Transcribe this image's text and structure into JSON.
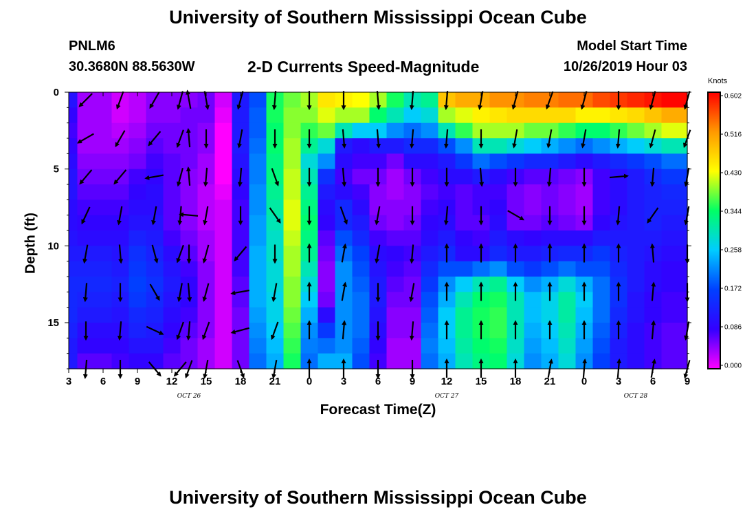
{
  "header": {
    "title": "University of Southern Mississippi Ocean Cube",
    "station": "PNLM6",
    "coords": "30.3680N 88.5630W",
    "subtitle": "2-D Currents Speed-Magnitude",
    "model_start_label": "Model Start Time",
    "model_start_value": "10/26/2019 Hour 03"
  },
  "footer": {
    "title": "University of Southern Mississippi Ocean Cube"
  },
  "chart_data": {
    "type": "heatmap",
    "title": "2-D Currents Speed-Magnitude",
    "xlabel": "Forecast Time(Z)",
    "ylabel": "Depth (ft)",
    "x_range_hours": [
      0,
      54
    ],
    "x_tick_labels": [
      "3",
      "6",
      "9",
      "12",
      "15",
      "18",
      "21",
      "0",
      "3",
      "6",
      "9",
      "12",
      "15",
      "18",
      "21",
      "0",
      "3",
      "6",
      "9"
    ],
    "date_labels": [
      {
        "text": "OCT 26",
        "hour": 10.5
      },
      {
        "text": "OCT 27",
        "hour": 33
      },
      {
        "text": "OCT 28",
        "hour": 49.5
      }
    ],
    "y_range_ft": [
      0,
      18
    ],
    "y_ticks": [
      0,
      5,
      10,
      15
    ],
    "colorbar": {
      "units": "Knots",
      "min": 0.0,
      "max": 0.602,
      "tick_labels": [
        "0.602",
        "0.516",
        "0.430",
        "0.344",
        "0.258",
        "0.172",
        "0.086",
        "0.000"
      ],
      "colors": [
        "#ff00ff",
        "#3300ff",
        "#0040ff",
        "#00ccff",
        "#00ff66",
        "#ffff00",
        "#ff9900",
        "#ff0000"
      ]
    },
    "time_hours": [
      0,
      1.5,
      3,
      4.5,
      6,
      7.5,
      9,
      10.5,
      12,
      13.5,
      15,
      16.5,
      18,
      19.5,
      21,
      22.5,
      24,
      25.5,
      27,
      28.5,
      30,
      31.5,
      33,
      34.5,
      36,
      37.5,
      39,
      40.5,
      42,
      43.5,
      45,
      46.5,
      48,
      49.5,
      51,
      52.5,
      54
    ],
    "depth_ft": [
      0,
      1,
      2,
      3,
      4,
      5,
      6,
      7,
      8,
      9,
      10,
      11,
      12,
      13,
      14,
      15,
      16,
      17
    ],
    "speed_knots_by_time_row": [
      [
        0.11,
        0.09,
        0.08,
        0.09,
        0.1,
        0.11,
        0.11,
        0.1,
        0.1,
        0.11,
        0.12,
        0.13,
        0.14,
        0.14,
        0.14,
        0.13,
        0.12,
        0.12
      ],
      [
        0.04,
        0.04,
        0.04,
        0.04,
        0.05,
        0.06,
        0.07,
        0.08,
        0.09,
        0.1,
        0.12,
        0.13,
        0.14,
        0.13,
        0.12,
        0.1,
        0.09,
        0.07
      ],
      [
        0.04,
        0.04,
        0.04,
        0.04,
        0.05,
        0.06,
        0.07,
        0.08,
        0.09,
        0.1,
        0.12,
        0.13,
        0.14,
        0.13,
        0.12,
        0.1,
        0.09,
        0.07
      ],
      [
        0.02,
        0.02,
        0.03,
        0.04,
        0.05,
        0.06,
        0.07,
        0.08,
        0.09,
        0.1,
        0.11,
        0.12,
        0.13,
        0.12,
        0.11,
        0.1,
        0.09,
        0.08
      ],
      [
        0.03,
        0.03,
        0.04,
        0.05,
        0.06,
        0.08,
        0.09,
        0.1,
        0.11,
        0.13,
        0.15,
        0.16,
        0.17,
        0.16,
        0.14,
        0.13,
        0.11,
        0.09
      ],
      [
        0.05,
        0.05,
        0.06,
        0.07,
        0.08,
        0.09,
        0.1,
        0.1,
        0.11,
        0.12,
        0.13,
        0.14,
        0.15,
        0.14,
        0.13,
        0.12,
        0.11,
        0.09
      ],
      [
        0.05,
        0.05,
        0.06,
        0.06,
        0.07,
        0.07,
        0.07,
        0.07,
        0.07,
        0.08,
        0.1,
        0.11,
        0.12,
        0.11,
        0.1,
        0.09,
        0.08,
        0.07
      ],
      [
        0.05,
        0.06,
        0.06,
        0.06,
        0.06,
        0.05,
        0.05,
        0.05,
        0.05,
        0.06,
        0.07,
        0.08,
        0.09,
        0.09,
        0.08,
        0.07,
        0.06,
        0.06
      ],
      [
        0.06,
        0.06,
        0.05,
        0.05,
        0.04,
        0.04,
        0.03,
        0.03,
        0.03,
        0.04,
        0.04,
        0.05,
        0.05,
        0.05,
        0.05,
        0.05,
        0.04,
        0.04
      ],
      [
        0.02,
        0.01,
        0.0,
        0.0,
        0.0,
        0.0,
        0.01,
        0.02,
        0.02,
        0.02,
        0.02,
        0.02,
        0.02,
        0.02,
        0.02,
        0.02,
        0.02,
        0.02
      ],
      [
        0.12,
        0.12,
        0.12,
        0.12,
        0.11,
        0.1,
        0.09,
        0.08,
        0.08,
        0.08,
        0.08,
        0.08,
        0.07,
        0.07,
        0.06,
        0.06,
        0.06,
        0.06
      ],
      [
        0.18,
        0.19,
        0.19,
        0.2,
        0.21,
        0.21,
        0.22,
        0.22,
        0.23,
        0.23,
        0.24,
        0.24,
        0.24,
        0.24,
        0.23,
        0.22,
        0.21,
        0.2
      ],
      [
        0.35,
        0.35,
        0.34,
        0.34,
        0.33,
        0.33,
        0.32,
        0.31,
        0.3,
        0.29,
        0.29,
        0.28,
        0.28,
        0.27,
        0.27,
        0.26,
        0.25,
        0.24
      ],
      [
        0.38,
        0.39,
        0.39,
        0.4,
        0.4,
        0.41,
        0.41,
        0.42,
        0.42,
        0.41,
        0.4,
        0.4,
        0.39,
        0.39,
        0.38,
        0.37,
        0.36,
        0.35
      ],
      [
        0.4,
        0.39,
        0.36,
        0.32,
        0.28,
        0.3,
        0.32,
        0.33,
        0.34,
        0.33,
        0.32,
        0.3,
        0.28,
        0.26,
        0.24,
        0.22,
        0.21,
        0.2
      ],
      [
        0.45,
        0.42,
        0.38,
        0.28,
        0.22,
        0.15,
        0.12,
        0.1,
        0.09,
        0.07,
        0.06,
        0.05,
        0.05,
        0.06,
        0.1,
        0.16,
        0.2,
        0.24
      ],
      [
        0.44,
        0.4,
        0.3,
        0.12,
        0.1,
        0.08,
        0.1,
        0.14,
        0.14,
        0.18,
        0.2,
        0.22,
        0.22,
        0.22,
        0.22,
        0.22,
        0.22,
        0.24
      ],
      [
        0.43,
        0.4,
        0.26,
        0.1,
        0.08,
        0.06,
        0.08,
        0.1,
        0.12,
        0.14,
        0.17,
        0.18,
        0.19,
        0.2,
        0.2,
        0.2,
        0.19,
        0.18
      ],
      [
        0.4,
        0.34,
        0.26,
        0.12,
        0.08,
        0.06,
        0.05,
        0.05,
        0.06,
        0.08,
        0.1,
        0.11,
        0.12,
        0.12,
        0.11,
        0.1,
        0.09,
        0.08
      ],
      [
        0.35,
        0.3,
        0.22,
        0.12,
        0.06,
        0.04,
        0.04,
        0.05,
        0.05,
        0.07,
        0.09,
        0.08,
        0.07,
        0.06,
        0.05,
        0.05,
        0.04,
        0.04
      ],
      [
        0.3,
        0.26,
        0.2,
        0.14,
        0.1,
        0.06,
        0.05,
        0.05,
        0.06,
        0.07,
        0.08,
        0.07,
        0.06,
        0.06,
        0.05,
        0.05,
        0.04,
        0.04
      ],
      [
        0.32,
        0.28,
        0.22,
        0.14,
        0.1,
        0.08,
        0.07,
        0.08,
        0.09,
        0.1,
        0.12,
        0.14,
        0.16,
        0.18,
        0.19,
        0.2,
        0.21,
        0.2
      ],
      [
        0.48,
        0.4,
        0.3,
        0.18,
        0.12,
        0.1,
        0.08,
        0.09,
        0.1,
        0.12,
        0.14,
        0.18,
        0.22,
        0.24,
        0.26,
        0.26,
        0.25,
        0.24
      ],
      [
        0.5,
        0.42,
        0.36,
        0.22,
        0.16,
        0.1,
        0.07,
        0.07,
        0.07,
        0.09,
        0.1,
        0.18,
        0.26,
        0.3,
        0.32,
        0.32,
        0.31,
        0.3
      ],
      [
        0.5,
        0.44,
        0.4,
        0.3,
        0.2,
        0.12,
        0.08,
        0.08,
        0.07,
        0.08,
        0.1,
        0.2,
        0.3,
        0.34,
        0.35,
        0.35,
        0.34,
        0.33
      ],
      [
        0.52,
        0.45,
        0.4,
        0.3,
        0.18,
        0.1,
        0.08,
        0.09,
        0.1,
        0.12,
        0.14,
        0.22,
        0.32,
        0.35,
        0.36,
        0.36,
        0.35,
        0.34
      ],
      [
        0.52,
        0.46,
        0.4,
        0.28,
        0.16,
        0.08,
        0.06,
        0.06,
        0.06,
        0.1,
        0.12,
        0.18,
        0.26,
        0.3,
        0.3,
        0.3,
        0.29,
        0.28
      ],
      [
        0.53,
        0.46,
        0.38,
        0.26,
        0.14,
        0.07,
        0.05,
        0.05,
        0.06,
        0.09,
        0.12,
        0.16,
        0.22,
        0.25,
        0.25,
        0.24,
        0.23,
        0.22
      ],
      [
        0.53,
        0.46,
        0.38,
        0.24,
        0.14,
        0.07,
        0.06,
        0.06,
        0.07,
        0.1,
        0.13,
        0.18,
        0.24,
        0.27,
        0.27,
        0.26,
        0.25,
        0.24
      ],
      [
        0.54,
        0.46,
        0.36,
        0.22,
        0.12,
        0.06,
        0.05,
        0.05,
        0.06,
        0.1,
        0.14,
        0.2,
        0.28,
        0.31,
        0.31,
        0.3,
        0.29,
        0.28
      ],
      [
        0.54,
        0.44,
        0.34,
        0.2,
        0.1,
        0.05,
        0.04,
        0.04,
        0.05,
        0.1,
        0.14,
        0.18,
        0.24,
        0.26,
        0.25,
        0.24,
        0.23,
        0.22
      ],
      [
        0.56,
        0.44,
        0.34,
        0.22,
        0.12,
        0.08,
        0.08,
        0.08,
        0.09,
        0.12,
        0.16,
        0.18,
        0.2,
        0.2,
        0.2,
        0.19,
        0.18,
        0.17
      ],
      [
        0.57,
        0.45,
        0.36,
        0.24,
        0.14,
        0.1,
        0.1,
        0.1,
        0.11,
        0.12,
        0.13,
        0.14,
        0.15,
        0.15,
        0.14,
        0.13,
        0.12,
        0.12
      ],
      [
        0.58,
        0.46,
        0.38,
        0.26,
        0.16,
        0.12,
        0.12,
        0.12,
        0.12,
        0.12,
        0.12,
        0.12,
        0.12,
        0.11,
        0.11,
        0.1,
        0.1,
        0.1
      ],
      [
        0.59,
        0.48,
        0.4,
        0.28,
        0.18,
        0.14,
        0.13,
        0.13,
        0.13,
        0.12,
        0.11,
        0.1,
        0.1,
        0.09,
        0.09,
        0.08,
        0.08,
        0.08
      ],
      [
        0.6,
        0.5,
        0.42,
        0.3,
        0.2,
        0.16,
        0.14,
        0.13,
        0.12,
        0.11,
        0.1,
        0.09,
        0.09,
        0.08,
        0.08,
        0.07,
        0.07,
        0.07
      ],
      [
        0.6,
        0.5,
        0.42,
        0.3,
        0.2,
        0.16,
        0.14,
        0.13,
        0.12,
        0.11,
        0.1,
        0.09,
        0.09,
        0.08,
        0.08,
        0.07,
        0.07,
        0.07
      ]
    ],
    "vector_depths_ft": [
      0.5,
      3,
      5.5,
      8,
      10.5,
      13,
      15.5,
      18
    ],
    "vector_columns": [
      {
        "hour": 1.5,
        "dir_deg": [
          225,
          240,
          220,
          205,
          190,
          185,
          180,
          185
        ]
      },
      {
        "hour": 4.5,
        "dir_deg": [
          200,
          210,
          220,
          190,
          175,
          180,
          185,
          180
        ]
      },
      {
        "hour": 7.5,
        "dir_deg": [
          210,
          220,
          260,
          190,
          165,
          150,
          115,
          140
        ]
      },
      {
        "hour": 9.75,
        "dir_deg": [
          195,
          200,
          195,
          185,
          200,
          190,
          200,
          220
        ]
      },
      {
        "hour": 10.5,
        "dir_deg": [
          350,
          355,
          355,
          275,
          180,
          175,
          185,
          200
        ]
      },
      {
        "hour": 12,
        "dir_deg": [
          170,
          180,
          185,
          190,
          195,
          195,
          200,
          190
        ]
      },
      {
        "hour": 15,
        "dir_deg": [
          195,
          190,
          185,
          180,
          220,
          260,
          255,
          160
        ]
      },
      {
        "hour": 18,
        "dir_deg": [
          185,
          180,
          160,
          145,
          180,
          190,
          200,
          190
        ]
      },
      {
        "hour": 21,
        "dir_deg": [
          180,
          180,
          180,
          180,
          0,
          0,
          0,
          0
        ]
      },
      {
        "hour": 24,
        "dir_deg": [
          180,
          175,
          175,
          160,
          10,
          10,
          5,
          0
        ]
      },
      {
        "hour": 27,
        "dir_deg": [
          175,
          175,
          180,
          190,
          190,
          180,
          180,
          180
        ]
      },
      {
        "hour": 30,
        "dir_deg": [
          185,
          185,
          180,
          180,
          185,
          190,
          185,
          180
        ]
      },
      {
        "hour": 33,
        "dir_deg": [
          185,
          185,
          180,
          185,
          0,
          0,
          0,
          0
        ]
      },
      {
        "hour": 36,
        "dir_deg": [
          190,
          180,
          175,
          180,
          0,
          0,
          0,
          0
        ]
      },
      {
        "hour": 39,
        "dir_deg": [
          195,
          190,
          180,
          120,
          0,
          0,
          0,
          0
        ]
      },
      {
        "hour": 42,
        "dir_deg": [
          200,
          190,
          185,
          180,
          0,
          0,
          0,
          10
        ]
      },
      {
        "hour": 45,
        "dir_deg": [
          195,
          190,
          180,
          180,
          0,
          0,
          0,
          5
        ]
      },
      {
        "hour": 48,
        "dir_deg": [
          180,
          185,
          85,
          185,
          0,
          0,
          0,
          5
        ]
      },
      {
        "hour": 51,
        "dir_deg": [
          195,
          195,
          185,
          215,
          355,
          5,
          5,
          10
        ]
      },
      {
        "hour": 54,
        "dir_deg": [
          195,
          200,
          190,
          190,
          180,
          180,
          190,
          195
        ]
      }
    ]
  }
}
